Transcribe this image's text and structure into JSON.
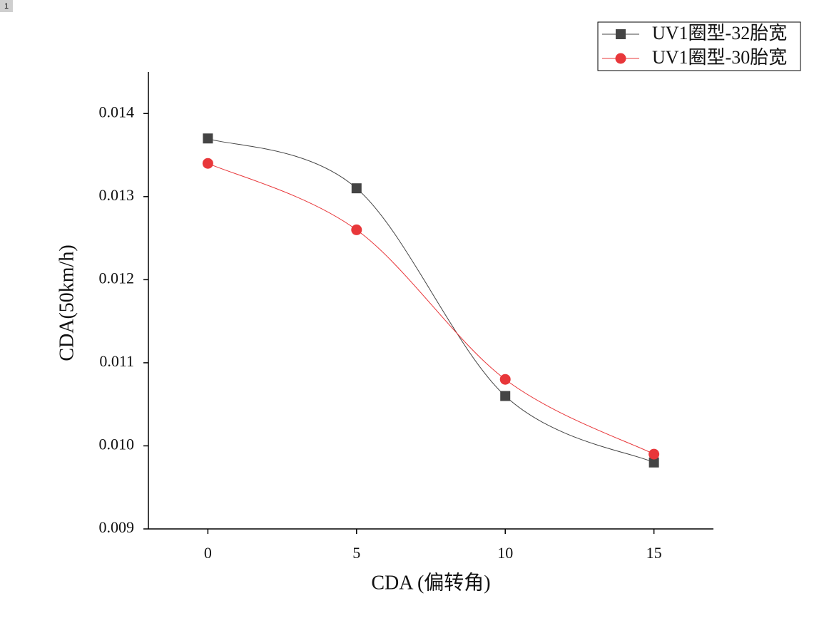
{
  "tab_label": "1",
  "chart_data": {
    "type": "line",
    "smooth": true,
    "x_label": "CDA (偏转角)",
    "y_label": "CDA(50km/h)",
    "x": [
      0,
      5,
      10,
      15
    ],
    "series": [
      {
        "name": "UV1圈型-32胎宽",
        "color": "#444444",
        "marker": "square",
        "values": [
          0.0137,
          0.0131,
          0.0106,
          0.0098
        ]
      },
      {
        "name": "UV1圈型-30胎宽",
        "color": "#e8373a",
        "marker": "circle",
        "values": [
          0.0134,
          0.0126,
          0.0108,
          0.0099
        ]
      }
    ],
    "xlim": [
      -2,
      17
    ],
    "xticks": [
      0,
      5,
      10,
      15
    ],
    "ylim": [
      0.009,
      0.0145
    ],
    "yticks": [
      0.009,
      {
        "value": 0.01,
        "label": "0.010"
      },
      0.011,
      0.012,
      0.013,
      0.014
    ],
    "legend": "top-right"
  }
}
